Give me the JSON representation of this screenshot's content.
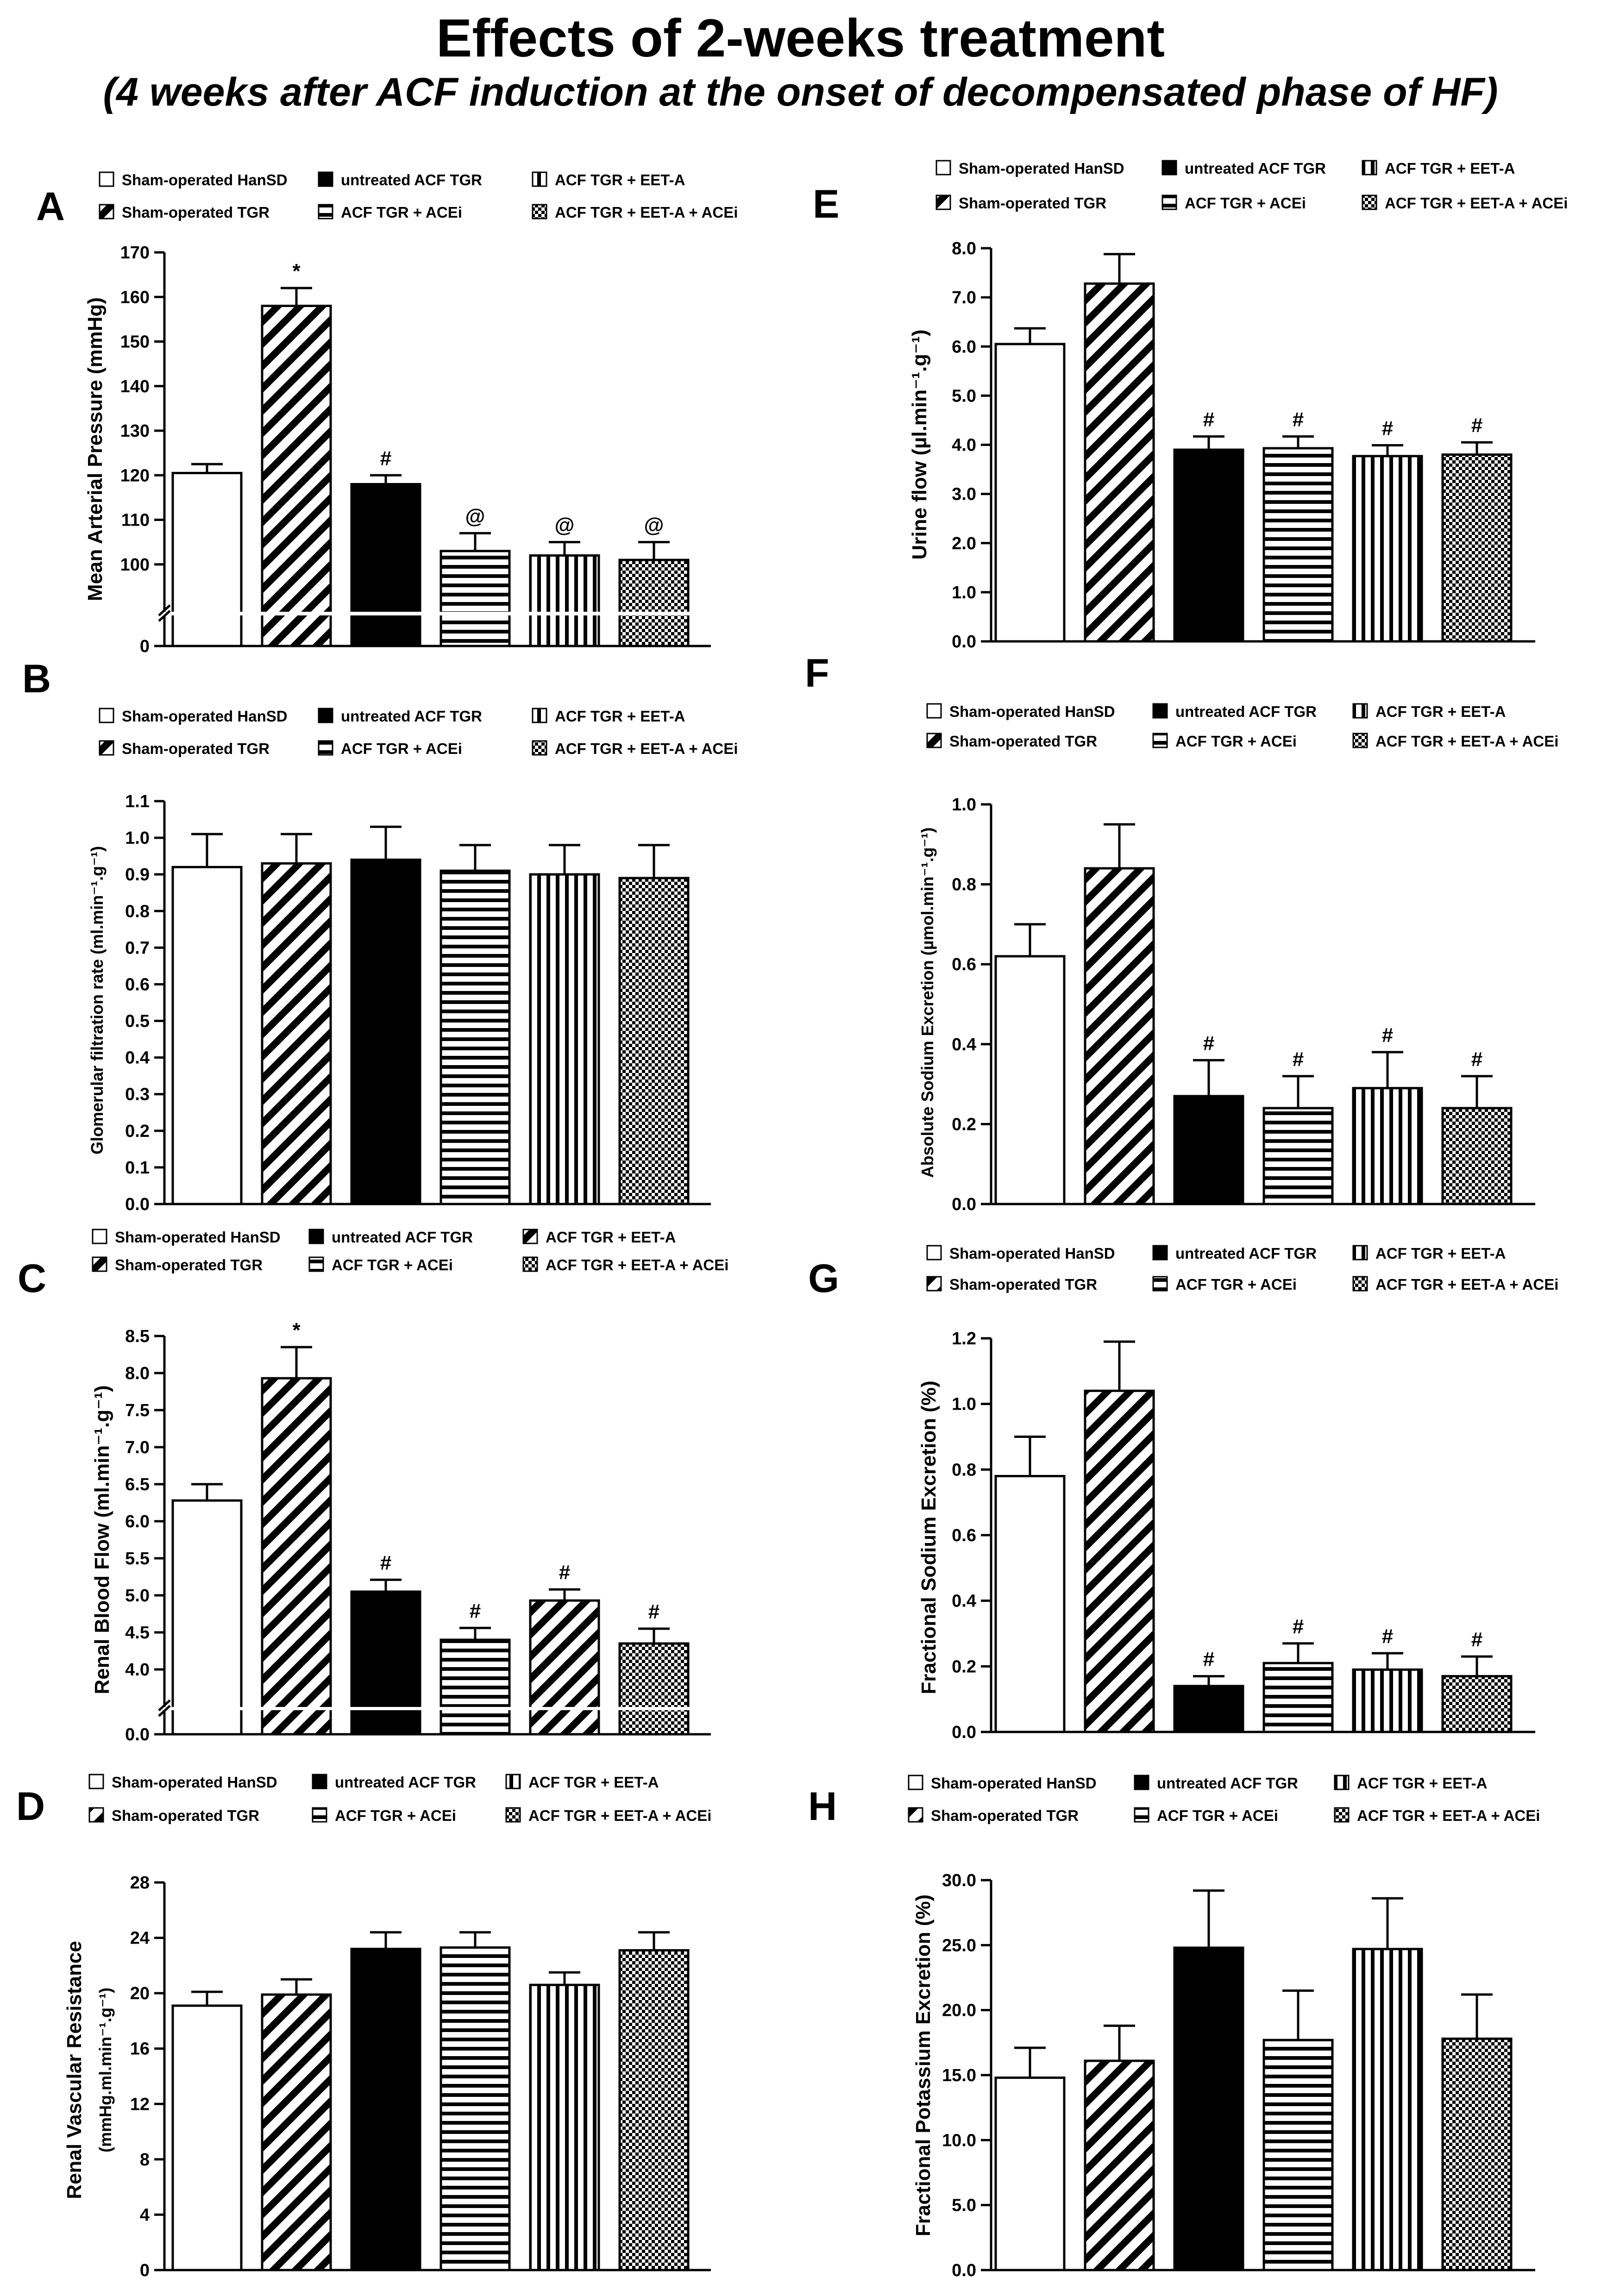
{
  "figure": {
    "title": "Effects of 2-weeks treatment",
    "subtitle": "(4 weeks after ACF induction at the onset of decompensated phase of HF)"
  },
  "colors": {
    "ink": "#000000",
    "background": "#ffffff"
  },
  "chart_data": [
    {
      "panel": "A",
      "type": "bar",
      "ylabel": "Mean Arterial Pressure (mmHg)",
      "axis_break": true,
      "ylim": [
        90,
        170
      ],
      "yticks": [
        0,
        100,
        110,
        120,
        130,
        140,
        150,
        160,
        170
      ],
      "yticklabels": [
        "0",
        "100",
        "110",
        "120",
        "130",
        "140",
        "150",
        "160",
        "170"
      ],
      "categories": [
        "Sham-operated HanSD",
        "Sham-operated TGR",
        "untreated ACF TGR",
        "ACF TGR + ACEi",
        "ACF TGR + EET-A",
        "ACF TGR + EET-A + ACEi"
      ],
      "patterns": [
        "white",
        "diag",
        "black",
        "hstripe",
        "vstripe",
        "check"
      ],
      "values": [
        120.5,
        158,
        118,
        103,
        102,
        101
      ],
      "errors": [
        2,
        4,
        2,
        4,
        3,
        4
      ],
      "annotations": [
        "",
        "*",
        "#",
        "@",
        "@",
        "@"
      ]
    },
    {
      "panel": "B",
      "type": "bar",
      "ylabel": "Glomerular filtration rate (ml.min⁻¹.g⁻¹)",
      "axis_break": false,
      "ylim": [
        0,
        1.1
      ],
      "yticks": [
        0,
        0.1,
        0.2,
        0.3,
        0.4,
        0.5,
        0.6,
        0.7,
        0.8,
        0.9,
        1.0,
        1.1
      ],
      "yticklabels": [
        "0.0",
        "0.1",
        "0.2",
        "0.3",
        "0.4",
        "0.5",
        "0.6",
        "0.7",
        "0.8",
        "0.9",
        "1.0",
        "1.1"
      ],
      "categories": [
        "Sham-operated HanSD",
        "Sham-operated TGR",
        "untreated ACF TGR",
        "ACF TGR + ACEi",
        "ACF TGR + EET-A",
        "ACF TGR + EET-A + ACEi"
      ],
      "patterns": [
        "white",
        "diag",
        "black",
        "hstripe",
        "vstripe",
        "check"
      ],
      "values": [
        0.92,
        0.93,
        0.94,
        0.91,
        0.9,
        0.89
      ],
      "errors": [
        0.09,
        0.08,
        0.09,
        0.07,
        0.08,
        0.09
      ],
      "annotations": [
        "",
        "",
        "",
        "",
        "",
        ""
      ]
    },
    {
      "panel": "C",
      "type": "bar",
      "ylabel": "Renal Blood Flow (ml.min⁻¹.g⁻¹)",
      "axis_break": true,
      "ylim": [
        3.5,
        8.5
      ],
      "yticks": [
        0,
        4.0,
        4.5,
        5.0,
        5.5,
        6.0,
        6.5,
        7.0,
        7.5,
        8.0,
        8.5
      ],
      "yticklabels": [
        "0.0",
        "4.0",
        "4.5",
        "5.0",
        "5.5",
        "6.0",
        "6.5",
        "7.0",
        "7.5",
        "8.0",
        "8.5"
      ],
      "categories": [
        "Sham-operated HanSD",
        "Sham-operated TGR",
        "untreated ACF TGR",
        "ACF TGR + ACEi",
        "ACF TGR + EET-A",
        "ACF TGR + EET-A + ACEi"
      ],
      "patterns": [
        "white",
        "diag",
        "black",
        "hstripe",
        "diag",
        "check"
      ],
      "values": [
        6.28,
        7.93,
        5.05,
        4.4,
        4.93,
        4.35
      ],
      "errors": [
        0.22,
        0.42,
        0.16,
        0.16,
        0.15,
        0.2
      ],
      "annotations": [
        "",
        "*",
        "#",
        "#",
        "#",
        "#"
      ]
    },
    {
      "panel": "D",
      "type": "bar",
      "ylabel": "Renal Vascular Resistance",
      "ylabel2": "(mmHg.ml.min⁻¹.g⁻¹)",
      "axis_break": false,
      "ylim": [
        0,
        28
      ],
      "yticks": [
        0,
        4,
        8,
        12,
        16,
        20,
        24,
        28
      ],
      "yticklabels": [
        "0",
        "4",
        "8",
        "12",
        "16",
        "20",
        "24",
        "28"
      ],
      "categories": [
        "Sham-operated HanSD",
        "Sham-operated TGR",
        "untreated ACF TGR",
        "ACF TGR + ACEi",
        "ACF TGR + EET-A",
        "ACF TGR + EET-A + ACEi"
      ],
      "patterns": [
        "white",
        "diag",
        "black",
        "hstripe",
        "vstripe",
        "check"
      ],
      "values": [
        19.1,
        19.9,
        23.2,
        23.3,
        20.6,
        23.1
      ],
      "errors": [
        1.0,
        1.1,
        1.2,
        1.1,
        0.9,
        1.3
      ],
      "annotations": [
        "",
        "",
        "",
        "",
        "",
        ""
      ]
    },
    {
      "panel": "E",
      "type": "bar",
      "ylabel": "Urine flow (µl.min⁻¹.g⁻¹)",
      "axis_break": false,
      "ylim": [
        0,
        8
      ],
      "yticks": [
        0,
        1,
        2,
        3,
        4,
        5,
        6,
        7,
        8
      ],
      "yticklabels": [
        "0.0",
        "1.0",
        "2.0",
        "3.0",
        "4.0",
        "5.0",
        "6.0",
        "7.0",
        "8.0"
      ],
      "categories": [
        "Sham-operated HanSD",
        "Sham-operated TGR",
        "untreated ACF TGR",
        "ACF TGR + ACEi",
        "ACF TGR + EET-A",
        "ACF TGR + EET-A + ACEi"
      ],
      "patterns": [
        "white",
        "diag",
        "black",
        "hstripe",
        "vstripe",
        "check"
      ],
      "values": [
        6.05,
        7.28,
        3.9,
        3.93,
        3.77,
        3.8
      ],
      "errors": [
        0.32,
        0.6,
        0.27,
        0.24,
        0.22,
        0.25
      ],
      "annotations": [
        "",
        "",
        "#",
        "#",
        "#",
        "#"
      ]
    },
    {
      "panel": "F",
      "type": "bar",
      "ylabel": "Absolute Sodium Excretion (µmol.min⁻¹.g⁻¹)",
      "axis_break": false,
      "ylim": [
        0,
        1.0
      ],
      "yticks": [
        0,
        0.2,
        0.4,
        0.6,
        0.8,
        1.0
      ],
      "yticklabels": [
        "0.0",
        "0.2",
        "0.4",
        "0.6",
        "0.8",
        "1.0"
      ],
      "categories": [
        "Sham-operated HanSD",
        "Sham-operated TGR",
        "untreated ACF TGR",
        "ACF TGR + ACEi",
        "ACF TGR + EET-A",
        "ACF TGR + EET-A + ACEi"
      ],
      "patterns": [
        "white",
        "diag",
        "black",
        "hstripe",
        "vstripe",
        "check"
      ],
      "values": [
        0.62,
        0.84,
        0.27,
        0.24,
        0.29,
        0.24
      ],
      "errors": [
        0.08,
        0.11,
        0.09,
        0.08,
        0.09,
        0.08
      ],
      "annotations": [
        "",
        "",
        "#",
        "#",
        "#",
        "#"
      ]
    },
    {
      "panel": "G",
      "type": "bar",
      "ylabel": "Fractional Sodium Excretion (%)",
      "axis_break": false,
      "ylim": [
        0,
        1.2
      ],
      "yticks": [
        0,
        0.2,
        0.4,
        0.6,
        0.8,
        1.0,
        1.2
      ],
      "yticklabels": [
        "0.0",
        "0.2",
        "0.4",
        "0.6",
        "0.8",
        "1.0",
        "1.2"
      ],
      "categories": [
        "Sham-operated HanSD",
        "Sham-operated TGR",
        "untreated ACF TGR",
        "ACF TGR + ACEi",
        "ACF TGR + EET-A",
        "ACF TGR + EET-A + ACEi"
      ],
      "patterns": [
        "white",
        "diag",
        "black",
        "hstripe",
        "vstripe",
        "check"
      ],
      "values": [
        0.78,
        1.04,
        0.14,
        0.21,
        0.19,
        0.17
      ],
      "errors": [
        0.12,
        0.15,
        0.03,
        0.06,
        0.05,
        0.06
      ],
      "annotations": [
        "",
        "",
        "#",
        "#",
        "#",
        "#"
      ]
    },
    {
      "panel": "H",
      "type": "bar",
      "ylabel": "Fractional Potassium Excretion (%)",
      "axis_break": false,
      "ylim": [
        0,
        30
      ],
      "yticks": [
        0,
        5,
        10,
        15,
        20,
        25,
        30
      ],
      "yticklabels": [
        "0.0",
        "5.0",
        "10.0",
        "15.0",
        "20.0",
        "25.0",
        "30.0"
      ],
      "categories": [
        "Sham-operated HanSD",
        "Sham-operated TGR",
        "untreated ACF TGR",
        "ACF TGR + ACEi",
        "ACF TGR + EET-A",
        "ACF TGR + EET-A + ACEi"
      ],
      "patterns": [
        "white",
        "diag",
        "black",
        "hstripe",
        "vstripe",
        "check"
      ],
      "values": [
        14.8,
        16.1,
        24.8,
        17.7,
        24.7,
        17.8
      ],
      "errors": [
        2.3,
        2.7,
        4.4,
        3.8,
        3.9,
        3.4
      ],
      "annotations": [
        "",
        "",
        "",
        "",
        "",
        ""
      ]
    }
  ]
}
